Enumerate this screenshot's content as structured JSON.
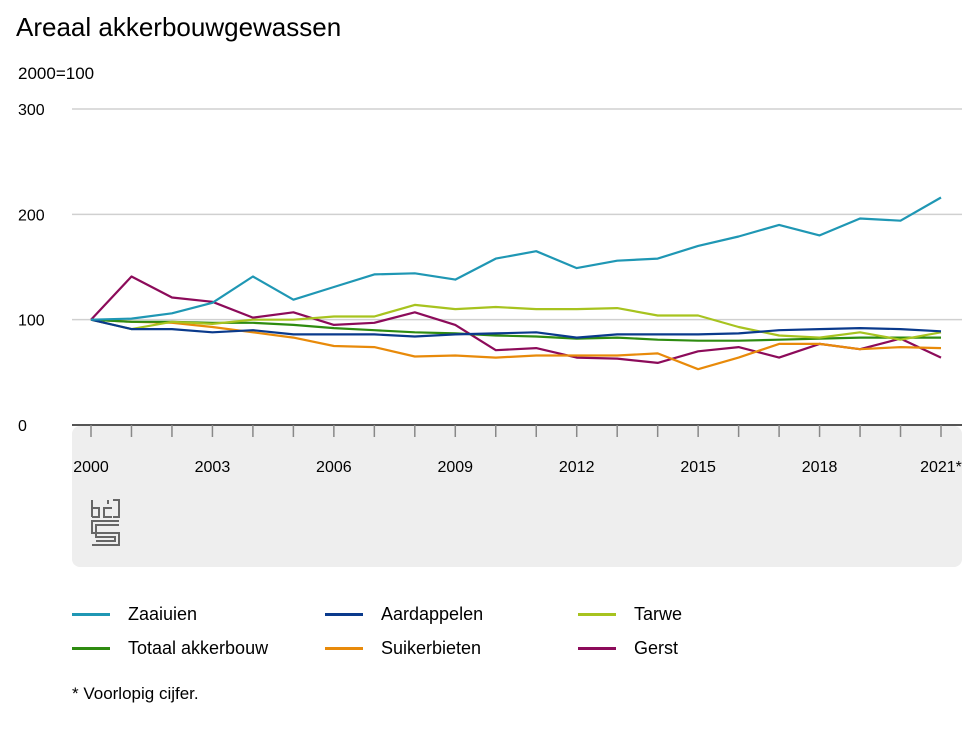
{
  "title": "Areaal akkerbouwgewassen",
  "unit_label": "2000=100",
  "footnote": "* Voorlopig cijfer.",
  "logo_text": "cbs",
  "chart_data": {
    "type": "line",
    "title": "Areaal akkerbouwgewassen",
    "ylabel": "2000=100",
    "xlabel": "",
    "ylim": [
      0,
      300
    ],
    "yticks": [
      0,
      100,
      200,
      300
    ],
    "x": [
      "2000",
      "2001",
      "2002",
      "2003",
      "2004",
      "2005",
      "2006",
      "2007",
      "2008",
      "2009",
      "2010",
      "2011",
      "2012",
      "2013",
      "2014",
      "2015",
      "2016",
      "2017",
      "2018",
      "2019",
      "2020",
      "2021*"
    ],
    "xtick_labels": [
      "2000",
      "2003",
      "2006",
      "2009",
      "2012",
      "2015",
      "2018",
      "2021*"
    ],
    "grid": true,
    "legend_position": "bottom",
    "series": [
      {
        "name": "Zaaiuien",
        "color": "#1f97b4",
        "values": [
          100,
          101,
          106,
          116,
          141,
          119,
          131,
          143,
          144,
          138,
          158,
          165,
          149,
          156,
          158,
          170,
          179,
          190,
          180,
          196,
          194,
          216
        ]
      },
      {
        "name": "Aardappelen",
        "color": "#0a3a8c",
        "values": [
          100,
          91,
          91,
          88,
          90,
          86,
          86,
          86,
          84,
          86,
          87,
          88,
          83,
          86,
          86,
          86,
          87,
          90,
          91,
          92,
          91,
          89
        ]
      },
      {
        "name": "Tarwe",
        "color": "#a7c31f",
        "values": [
          100,
          91,
          98,
          96,
          100,
          100,
          103,
          103,
          114,
          110,
          112,
          110,
          110,
          111,
          104,
          104,
          93,
          85,
          83,
          88,
          81,
          88
        ]
      },
      {
        "name": "Totaal akkerbouw",
        "color": "#2e8b10",
        "values": [
          100,
          98,
          98,
          97,
          97,
          95,
          92,
          90,
          88,
          87,
          85,
          84,
          82,
          83,
          81,
          80,
          80,
          81,
          82,
          83,
          83,
          83
        ]
      },
      {
        "name": "Suikerbieten",
        "color": "#e88a0a",
        "values": [
          100,
          98,
          97,
          93,
          88,
          83,
          75,
          74,
          65,
          66,
          64,
          66,
          66,
          66,
          68,
          53,
          64,
          77,
          77,
          72,
          74,
          73
        ]
      },
      {
        "name": "Gerst",
        "color": "#8c0b5a",
        "values": [
          100,
          141,
          121,
          117,
          102,
          107,
          95,
          97,
          107,
          95,
          71,
          73,
          64,
          63,
          59,
          70,
          74,
          64,
          77,
          72,
          82,
          64
        ]
      }
    ]
  }
}
